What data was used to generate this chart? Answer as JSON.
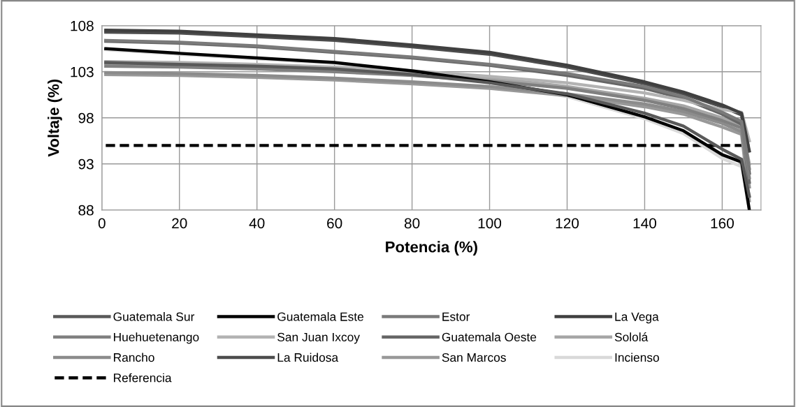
{
  "chart_data": {
    "type": "line",
    "xlabel": "Potencia (%)",
    "ylabel": "Voltaje (%)",
    "x": [
      1,
      20,
      40,
      60,
      80,
      100,
      120,
      140,
      150,
      160,
      165,
      167
    ],
    "xlim": [
      0,
      170
    ],
    "xticks": [
      0,
      20,
      40,
      60,
      80,
      100,
      120,
      140,
      160
    ],
    "ylim": [
      88,
      108
    ],
    "yticks": [
      88,
      93,
      98,
      103,
      108
    ],
    "grid": true,
    "legend": "bottom",
    "marker": "none",
    "series": [
      {
        "name": "Guatemala Sur",
        "color": "#595959",
        "values": [
          104.0,
          103.8,
          103.6,
          103.3,
          102.7,
          101.8,
          100.6,
          98.5,
          97.1,
          94.6,
          93.5,
          89.5
        ]
      },
      {
        "name": "Guatemala Este",
        "color": "#000000",
        "line_style": "solid",
        "values": [
          105.5,
          105.0,
          104.5,
          104.0,
          103.1,
          101.9,
          100.5,
          98.1,
          96.6,
          94.0,
          93.2,
          88.0
        ]
      },
      {
        "name": "Estor",
        "color": "#7a7a7a",
        "values": [
          106.4,
          106.2,
          105.8,
          105.2,
          104.6,
          103.8,
          102.8,
          101.4,
          100.3,
          98.6,
          97.6,
          92.5
        ]
      },
      {
        "name": "La Vega",
        "color": "#404040",
        "values": [
          107.5,
          107.4,
          107.0,
          106.6,
          105.9,
          105.1,
          103.7,
          101.9,
          100.8,
          99.4,
          98.5,
          94.4
        ]
      },
      {
        "name": "Huehuetenango",
        "color": "#808080",
        "values": [
          103.6,
          103.5,
          103.3,
          103.0,
          102.6,
          102.0,
          101.2,
          99.9,
          99.0,
          97.7,
          96.9,
          91.5
        ]
      },
      {
        "name": "San Juan Ixcoy",
        "color": "#b3b3b3",
        "values": [
          104.1,
          104.0,
          103.8,
          103.5,
          103.1,
          102.5,
          101.8,
          100.7,
          99.9,
          98.9,
          98.6,
          95.5
        ]
      },
      {
        "name": "Guatemala Oeste",
        "color": "#666666",
        "values": [
          106.3,
          106.1,
          105.7,
          105.1,
          104.5,
          103.7,
          102.6,
          101.2,
          100.1,
          98.4,
          97.3,
          91.0
        ]
      },
      {
        "name": "Sololá",
        "color": "#a6a6a6",
        "values": [
          103.9,
          103.8,
          103.6,
          103.3,
          102.9,
          102.3,
          101.4,
          100.1,
          99.3,
          98.0,
          97.2,
          93.0
        ]
      },
      {
        "name": "Rancho",
        "color": "#8c8c8c",
        "values": [
          102.9,
          102.8,
          102.6,
          102.3,
          101.9,
          101.4,
          100.6,
          99.5,
          98.7,
          97.4,
          96.5,
          90.5
        ]
      },
      {
        "name": "La Ruidosa",
        "color": "#4d4d4d",
        "values": [
          107.3,
          107.2,
          106.8,
          106.4,
          105.7,
          104.9,
          103.5,
          101.7,
          100.6,
          99.2,
          98.3,
          92.0
        ]
      },
      {
        "name": "San Marcos",
        "color": "#999999",
        "values": [
          102.7,
          102.6,
          102.4,
          102.1,
          101.7,
          101.2,
          100.4,
          99.2,
          98.4,
          97.0,
          96.2,
          89.0
        ]
      },
      {
        "name": "Incienso",
        "color": "#d9d9d9",
        "values": [
          105.4,
          104.9,
          104.4,
          103.9,
          103.0,
          101.8,
          100.3,
          97.9,
          96.3,
          93.6,
          92.7,
          88.0
        ]
      },
      {
        "name": "Referencia",
        "color": "#000000",
        "line_style": "dashed",
        "x": [
          1,
          167
        ],
        "values": [
          95,
          95
        ]
      }
    ]
  }
}
